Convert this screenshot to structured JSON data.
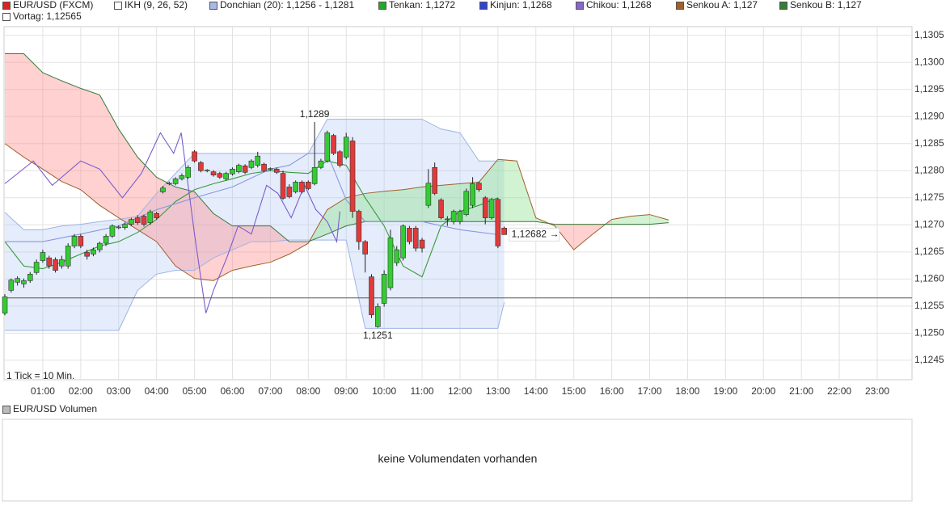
{
  "chart_data": [
    {
      "type": "candlestick",
      "legend": [
        {
          "label": "EUR/USD (FXCM)",
          "color": "#dd2222"
        },
        {
          "label": "IKH (9, 26, 52)",
          "color": "#ffffff"
        },
        {
          "label": "Donchian (20): 1,1256 - 1,1281",
          "color": "#a8b8e8"
        },
        {
          "label": "Tenkan: 1,1272",
          "color": "#22aa22"
        },
        {
          "label": "Kinjun: 1,1268",
          "color": "#3344cc"
        },
        {
          "label": "Chikou: 1,1268",
          "color": "#8866cc"
        },
        {
          "label": "Senkou A: 1,127",
          "color": "#a0602a"
        },
        {
          "label": "Senkou B: 1,127",
          "color": "#3a7a3a"
        },
        {
          "label": "Vortag: 1,12565",
          "color": "#ffffff"
        }
      ],
      "note": "1 Tick = 10 Min.",
      "xlim": [
        0,
        1435
      ],
      "ylim": [
        1.12414,
        1.13066
      ],
      "xticks": [
        {
          "value": 60,
          "label": "01:00"
        },
        {
          "value": 120,
          "label": "02:00"
        },
        {
          "value": 180,
          "label": "03:00"
        },
        {
          "value": 240,
          "label": "04:00"
        },
        {
          "value": 300,
          "label": "05:00"
        },
        {
          "value": 360,
          "label": "06:00"
        },
        {
          "value": 420,
          "label": "07:00"
        },
        {
          "value": 480,
          "label": "08:00"
        },
        {
          "value": 540,
          "label": "09:00"
        },
        {
          "value": 600,
          "label": "10:00"
        },
        {
          "value": 660,
          "label": "11:00"
        },
        {
          "value": 720,
          "label": "12:00"
        },
        {
          "value": 780,
          "label": "13:00"
        },
        {
          "value": 840,
          "label": "14:00"
        },
        {
          "value": 900,
          "label": "15:00"
        },
        {
          "value": 960,
          "label": "16:00"
        },
        {
          "value": 1020,
          "label": "17:00"
        },
        {
          "value": 1080,
          "label": "18:00"
        },
        {
          "value": 1140,
          "label": "19:00"
        },
        {
          "value": 1200,
          "label": "20:00"
        },
        {
          "value": 1260,
          "label": "21:00"
        },
        {
          "value": 1320,
          "label": "22:00"
        },
        {
          "value": 1380,
          "label": "23:00"
        }
      ],
      "yticks": [
        {
          "value": 1.1245,
          "label": "1,1245"
        },
        {
          "value": 1.125,
          "label": "1,1250"
        },
        {
          "value": 1.1255,
          "label": "1,1255"
        },
        {
          "value": 1.126,
          "label": "1,1260"
        },
        {
          "value": 1.1265,
          "label": "1,1265"
        },
        {
          "value": 1.127,
          "label": "1,1270"
        },
        {
          "value": 1.1275,
          "label": "1,1275"
        },
        {
          "value": 1.128,
          "label": "1,1280"
        },
        {
          "value": 1.1285,
          "label": "1,1285"
        },
        {
          "value": 1.129,
          "label": "1,1290"
        },
        {
          "value": 1.1295,
          "label": "1,1295"
        },
        {
          "value": 1.13,
          "label": "1,1300"
        },
        {
          "value": 1.1305,
          "label": "1,1305"
        }
      ],
      "grid": true,
      "vortag": {
        "value": 1.12565,
        "color": "#555555"
      },
      "candles": {
        "up_color": "#33cc33",
        "down_color": "#e03a3a",
        "x": [
          0,
          10,
          20,
          30,
          40,
          50,
          60,
          70,
          80,
          90,
          100,
          110,
          120,
          130,
          140,
          150,
          160,
          170,
          180,
          190,
          200,
          210,
          220,
          230,
          240,
          250,
          260,
          270,
          280,
          290,
          300,
          310,
          320,
          330,
          340,
          350,
          360,
          370,
          380,
          390,
          400,
          410,
          420,
          430,
          440,
          450,
          460,
          470,
          480,
          490,
          500,
          510,
          520,
          530,
          540,
          550,
          560,
          570,
          580,
          590,
          600,
          610,
          620,
          630,
          640,
          650,
          660,
          670,
          680,
          690,
          700,
          710,
          720,
          730,
          740,
          750,
          760,
          770,
          780,
          790
        ],
        "open": [
          1.12537,
          1.12579,
          1.12594,
          1.12591,
          1.12597,
          1.12612,
          1.12634,
          1.12639,
          1.12636,
          1.12624,
          1.12624,
          1.12661,
          1.12679,
          1.12649,
          1.12646,
          1.12654,
          1.12666,
          1.12679,
          1.12695,
          1.12695,
          1.12701,
          1.12713,
          1.12716,
          1.12704,
          1.12721,
          1.12761,
          1.12776,
          1.12776,
          1.12785,
          1.12788,
          1.12835,
          1.12815,
          1.128,
          1.12798,
          1.12795,
          1.12785,
          1.12794,
          1.12798,
          1.12809,
          1.12806,
          1.1281,
          1.12812,
          1.12803,
          1.12803,
          1.12795,
          1.1277,
          1.12761,
          1.12779,
          1.12779,
          1.12776,
          1.12806,
          1.12818,
          1.12865,
          1.12835,
          1.12825,
          1.12855,
          1.12725,
          1.12669,
          1.12604,
          1.12512,
          1.12555,
          1.12584,
          1.1263,
          1.12639,
          1.12694,
          1.12694,
          1.12672,
          1.12736,
          1.12806,
          1.12746,
          1.1271,
          1.12706,
          1.12706,
          1.12719,
          1.12736,
          1.12777,
          1.1275,
          1.12713,
          1.12747,
          1.12694
        ],
        "high": [
          1.12572,
          1.12601,
          1.12605,
          1.12601,
          1.12613,
          1.12636,
          1.12654,
          1.12643,
          1.1264,
          1.12643,
          1.12666,
          1.12683,
          1.12683,
          1.12654,
          1.12658,
          1.12669,
          1.12683,
          1.12701,
          1.12699,
          1.12704,
          1.12713,
          1.12718,
          1.12719,
          1.12728,
          1.12724,
          1.12772,
          1.1278,
          1.12788,
          1.12795,
          1.1281,
          1.12838,
          1.12818,
          1.12803,
          1.12801,
          1.12798,
          1.12798,
          1.12806,
          1.12813,
          1.12812,
          1.12821,
          1.12835,
          1.12815,
          1.12806,
          1.12806,
          1.128,
          1.12775,
          1.12782,
          1.12782,
          1.12782,
          1.1289,
          1.12822,
          1.12874,
          1.12868,
          1.12838,
          1.1287,
          1.12862,
          1.12728,
          1.12672,
          1.12609,
          1.12555,
          1.12616,
          1.12691,
          1.12661,
          1.12701,
          1.12698,
          1.12698,
          1.12676,
          1.12803,
          1.12815,
          1.12749,
          1.12716,
          1.12728,
          1.12728,
          1.12767,
          1.12788,
          1.1278,
          1.12753,
          1.1275,
          1.1275,
          1.12697
        ],
        "low": [
          1.12533,
          1.12575,
          1.12588,
          1.12584,
          1.12593,
          1.12608,
          1.1263,
          1.12619,
          1.12612,
          1.12619,
          1.12619,
          1.12657,
          1.12657,
          1.12636,
          1.12642,
          1.12649,
          1.12661,
          1.12676,
          1.12692,
          1.12691,
          1.12698,
          1.127,
          1.12697,
          1.127,
          1.1271,
          1.12758,
          1.12773,
          1.12773,
          1.12782,
          1.12785,
          1.12815,
          1.12797,
          1.12797,
          1.12789,
          1.12785,
          1.12782,
          1.12791,
          1.12795,
          1.12794,
          1.12803,
          1.12806,
          1.12797,
          1.128,
          1.12794,
          1.12746,
          1.12749,
          1.12758,
          1.12758,
          1.12764,
          1.12773,
          1.12803,
          1.12815,
          1.12829,
          1.12806,
          1.12821,
          1.12713,
          1.12654,
          1.12612,
          1.12528,
          1.1251,
          1.12549,
          1.12579,
          1.12624,
          1.12634,
          1.12664,
          1.12651,
          1.12649,
          1.12731,
          1.12755,
          1.1271,
          1.12698,
          1.12701,
          1.12701,
          1.12716,
          1.12731,
          1.12761,
          1.12701,
          1.1271,
          1.12657,
          1.12682
        ],
        "close": [
          1.12567,
          1.12598,
          1.12601,
          1.12597,
          1.12609,
          1.12631,
          1.12649,
          1.12624,
          1.12616,
          1.12636,
          1.12661,
          1.12679,
          1.12661,
          1.12642,
          1.12654,
          1.12666,
          1.12679,
          1.12698,
          1.12696,
          1.12701,
          1.1271,
          1.12704,
          1.12701,
          1.12724,
          1.12713,
          1.12768,
          1.12777,
          1.12785,
          1.12791,
          1.12806,
          1.12818,
          1.128,
          1.12801,
          1.12792,
          1.12788,
          1.12795,
          1.12803,
          1.1281,
          1.12797,
          1.12818,
          1.12827,
          1.128,
          1.12804,
          1.12797,
          1.12749,
          1.12752,
          1.12779,
          1.12761,
          1.12767,
          1.12806,
          1.12818,
          1.1287,
          1.12832,
          1.1281,
          1.12862,
          1.12725,
          1.12669,
          1.12646,
          1.12534,
          1.12549,
          1.12609,
          1.12676,
          1.12654,
          1.12698,
          1.12669,
          1.12657,
          1.12657,
          1.12777,
          1.12758,
          1.12713,
          1.12711,
          1.12725,
          1.12725,
          1.12762,
          1.12776,
          1.12765,
          1.12713,
          1.12747,
          1.12661,
          1.12682
        ]
      },
      "annotations": [
        {
          "text": "1,1289",
          "value": 1.1289
        },
        {
          "text": "1,1251",
          "value": 1.1251
        }
      ],
      "last_label": "1,12682",
      "donchian": {
        "color": "#9fb3e6",
        "fill": "rgba(175,200,245,0.32)",
        "x": [
          0,
          30,
          60,
          90,
          120,
          150,
          180,
          210,
          240,
          270,
          300,
          330,
          360,
          390,
          420,
          450,
          480,
          510,
          540,
          570,
          600,
          630,
          660,
          690,
          720,
          750,
          780,
          790
        ],
        "upper": [
          1.12723,
          1.12691,
          1.12691,
          1.12698,
          1.12701,
          1.12706,
          1.1271,
          1.12716,
          1.12758,
          1.12795,
          1.12832,
          1.12832,
          1.12832,
          1.12832,
          1.12832,
          1.12832,
          1.12832,
          1.12895,
          1.12895,
          1.12895,
          1.12895,
          1.12895,
          1.12895,
          1.12877,
          1.1287,
          1.12818,
          1.12818,
          1.12818
        ],
        "lower": [
          1.12505,
          1.12505,
          1.12505,
          1.12505,
          1.12505,
          1.12505,
          1.12505,
          1.12579,
          1.12609,
          1.12616,
          1.12616,
          1.12639,
          1.12654,
          1.12669,
          1.12669,
          1.12672,
          1.12672,
          1.12672,
          1.12672,
          1.12509,
          1.12509,
          1.12509,
          1.12509,
          1.12509,
          1.12509,
          1.12509,
          1.12509,
          1.12557
        ]
      },
      "cloud": {
        "x": [
          0,
          30,
          60,
          90,
          120,
          150,
          180,
          210,
          240,
          270,
          300,
          330,
          360,
          390,
          420,
          450,
          480,
          510,
          540,
          570,
          600,
          630,
          660,
          690,
          720,
          750,
          780,
          810,
          840,
          870,
          900,
          930,
          960,
          990,
          1020,
          1050
        ],
        "senkou_a": {
          "color": "#a0602a",
          "values": [
            1.1285,
            1.12825,
            1.12803,
            1.1278,
            1.12765,
            1.12736,
            1.12713,
            1.12691,
            1.12669,
            1.12624,
            1.12601,
            1.12597,
            1.12616,
            1.12624,
            1.12631,
            1.12646,
            1.12666,
            1.12728,
            1.1275,
            1.12758,
            1.12762,
            1.12765,
            1.1277,
            1.12773,
            1.12776,
            1.12779,
            1.12821,
            1.12818,
            1.12713,
            1.12698,
            1.12654,
            1.12683,
            1.1271,
            1.12716,
            1.12719,
            1.12709
          ]
        },
        "senkou_b": {
          "color": "#3a7a3a",
          "values": [
            1.13016,
            1.13016,
            1.12981,
            1.12966,
            1.12952,
            1.1294,
            1.12877,
            1.12825,
            1.12788,
            1.1277,
            1.12761,
            1.12721,
            1.12698,
            1.12698,
            1.12698,
            1.12669,
            1.12669,
            1.12683,
            1.12698,
            1.12706,
            1.12706,
            1.12706,
            1.12706,
            1.12706,
            1.12706,
            1.12706,
            1.12706,
            1.12706,
            1.12706,
            1.12701,
            1.12701,
            1.12701,
            1.12701,
            1.12701,
            1.12701,
            1.12704
          ]
        },
        "up_fill": "rgba(140,225,140,0.4)",
        "down_fill": "rgba(255,140,140,0.4)"
      },
      "tenkan": {
        "color": "#3a9a3a",
        "x": [
          0,
          30,
          60,
          90,
          120,
          150,
          180,
          210,
          240,
          270,
          300,
          330,
          360,
          390,
          420,
          450,
          480,
          510,
          540,
          570,
          600,
          630,
          660,
          690,
          720,
          750,
          780
        ],
        "values": [
          1.12669,
          1.12624,
          1.12619,
          1.12631,
          1.12646,
          1.12661,
          1.12669,
          1.12686,
          1.1271,
          1.12743,
          1.12765,
          1.12776,
          1.12785,
          1.12795,
          1.128,
          1.12797,
          1.12795,
          1.12818,
          1.1281,
          1.1275,
          1.12698,
          1.12624,
          1.12604,
          1.12698,
          1.12725,
          1.12736,
          1.1275
        ]
      },
      "kijun": {
        "color": "#8898e0",
        "x": [
          0,
          60,
          120,
          180,
          240,
          300,
          360,
          420,
          450,
          480,
          510,
          540,
          570,
          600,
          660,
          720,
          780
        ],
        "values": [
          1.12669,
          1.12669,
          1.12683,
          1.12698,
          1.12728,
          1.1275,
          1.1277,
          1.12803,
          1.1281,
          1.12832,
          1.12832,
          1.12746,
          1.12706,
          1.12706,
          1.12706,
          1.12691,
          1.12682
        ]
      },
      "chikou": {
        "color": "#7a5ccc",
        "x": [
          0,
          45,
          75,
          120,
          150,
          186,
          216,
          246,
          267,
          279,
          300,
          318,
          330,
          351,
          369,
          390,
          414,
          432,
          453,
          474,
          492,
          510,
          525,
          530
        ],
        "values": [
          1.12776,
          1.12818,
          1.12773,
          1.12818,
          1.12803,
          1.1275,
          1.12795,
          1.1287,
          1.12832,
          1.1287,
          1.12683,
          1.12537,
          1.12579,
          1.12639,
          1.12698,
          1.12683,
          1.12773,
          1.12758,
          1.12713,
          1.12773,
          1.12728,
          1.12706,
          1.12669,
          1.12725
        ]
      }
    },
    {
      "type": "volume",
      "legend": [
        {
          "label": "EUR/USD Volumen",
          "color": "#bbbbbb"
        }
      ],
      "message": "keine Volumendaten vorhanden"
    }
  ]
}
